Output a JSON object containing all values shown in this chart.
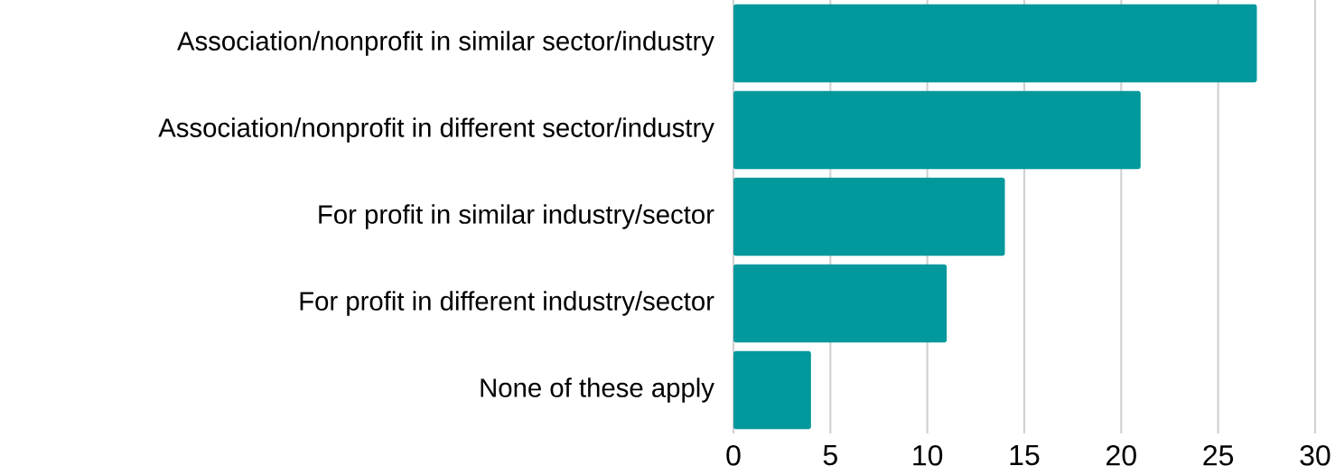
{
  "chart_data": {
    "type": "bar",
    "orientation": "horizontal",
    "categories": [
      "Association/nonprofit in similar sector/industry",
      "Association/nonprofit in different sector/industry",
      "For profit in similar industry/sector",
      "For profit in different industry/sector",
      "None of these apply"
    ],
    "values": [
      27,
      21,
      14,
      11,
      4
    ],
    "color": "#02989c",
    "xlim": [
      0,
      30
    ],
    "xticks": [
      0,
      5,
      10,
      15,
      20,
      25,
      30
    ],
    "grid": "x"
  }
}
